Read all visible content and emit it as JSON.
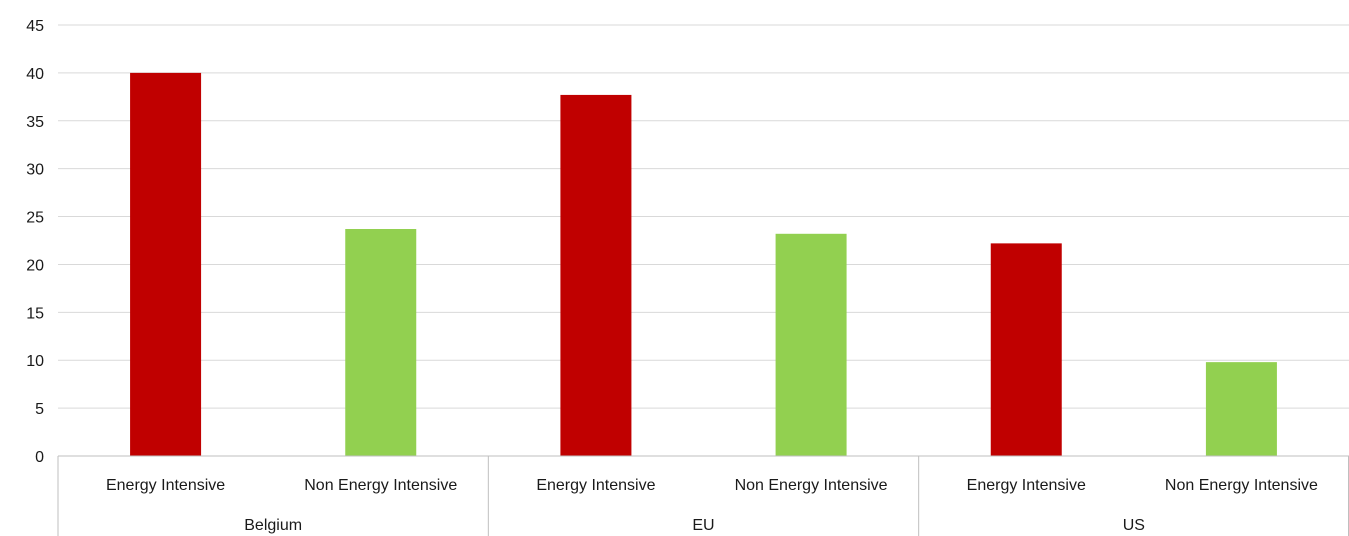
{
  "chart_data": {
    "type": "bar",
    "title": "",
    "xlabel": "",
    "ylabel": "",
    "ylim": [
      0,
      45
    ],
    "yticks": [
      0,
      5,
      10,
      15,
      20,
      25,
      30,
      35,
      40,
      45
    ],
    "grid": true,
    "groups": [
      {
        "label": "Belgium",
        "bars": [
          {
            "label": "Energy Intensive",
            "value": 40.0,
            "color": "#c00000"
          },
          {
            "label": "Non Energy Intensive",
            "value": 23.7,
            "color": "#92d050"
          }
        ]
      },
      {
        "label": "EU",
        "bars": [
          {
            "label": "Energy Intensive",
            "value": 37.7,
            "color": "#c00000"
          },
          {
            "label": "Non Energy Intensive",
            "value": 23.2,
            "color": "#92d050"
          }
        ]
      },
      {
        "label": "US",
        "bars": [
          {
            "label": "Energy Intensive",
            "value": 22.2,
            "color": "#c00000"
          },
          {
            "label": "Non Energy Intensive",
            "value": 9.8,
            "color": "#92d050"
          }
        ]
      }
    ]
  }
}
